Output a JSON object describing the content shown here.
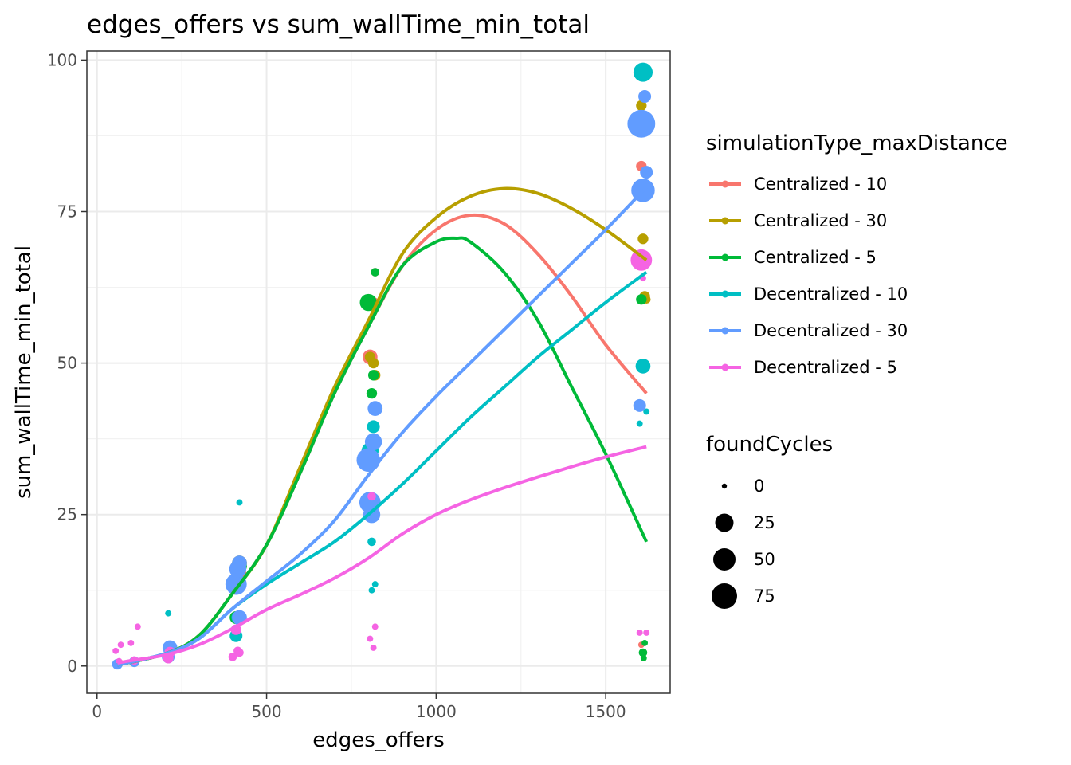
{
  "chart_data": {
    "type": "scatter",
    "title": "edges_offers  vs  sum_wallTime_min_total",
    "xlabel": "edges_offers",
    "ylabel": "sum_wallTime_min_total",
    "xlim": [
      -30,
      1690
    ],
    "ylim": [
      -4.5,
      101.5
    ],
    "x_ticks": [
      0,
      500,
      1000,
      1500
    ],
    "x_tick_labels": [
      "0",
      "500",
      "1000",
      "1500"
    ],
    "y_ticks": [
      0,
      25,
      50,
      75,
      100
    ],
    "y_tick_labels": [
      "0",
      "25",
      "50",
      "75",
      "100"
    ],
    "grid": true,
    "legend_placement": "right",
    "color_legend": {
      "title": "simulationType_maxDistance",
      "entries": [
        {
          "name": "Centralized - 10",
          "color": "#F8766D"
        },
        {
          "name": "Centralized - 30",
          "color": "#B79F00"
        },
        {
          "name": "Centralized - 5",
          "color": "#00BA38"
        },
        {
          "name": "Decentralized - 10",
          "color": "#00BFC4"
        },
        {
          "name": "Decentralized - 30",
          "color": "#619CFF"
        },
        {
          "name": "Decentralized - 5",
          "color": "#F564E3"
        }
      ]
    },
    "size_legend": {
      "title": "foundCycles",
      "entries": [
        {
          "label": "0",
          "value": 0
        },
        {
          "label": "25",
          "value": 25
        },
        {
          "label": "50",
          "value": 50
        },
        {
          "label": "75",
          "value": 75
        }
      ]
    },
    "series": [
      {
        "name": "Centralized - 10",
        "color": "#F8766D",
        "points": [
          [
            60,
            0.3,
            1
          ],
          [
            70,
            0.5,
            1
          ],
          [
            110,
            0.6,
            1
          ],
          [
            215,
            2.0,
            2
          ],
          [
            410,
            13,
            4
          ],
          [
            420,
            15,
            5
          ],
          [
            805,
            51,
            5
          ],
          [
            815,
            60,
            3
          ],
          [
            820,
            65,
            2
          ],
          [
            1605,
            82.5,
            3
          ],
          [
            1610,
            67,
            6
          ],
          [
            1605,
            3.5,
            1
          ]
        ],
        "smooth": [
          [
            60,
            0.2
          ],
          [
            200,
            2
          ],
          [
            300,
            5
          ],
          [
            400,
            12
          ],
          [
            500,
            20
          ],
          [
            600,
            32
          ],
          [
            700,
            45
          ],
          [
            800,
            56
          ],
          [
            900,
            66
          ],
          [
            1000,
            72
          ],
          [
            1100,
            74.4
          ],
          [
            1200,
            73
          ],
          [
            1300,
            68
          ],
          [
            1400,
            61
          ],
          [
            1500,
            53
          ],
          [
            1620,
            45
          ]
        ]
      },
      {
        "name": "Centralized - 30",
        "color": "#B79F00",
        "points": [
          [
            60,
            0.4,
            1
          ],
          [
            110,
            0.8,
            1
          ],
          [
            215,
            3.0,
            3
          ],
          [
            420,
            17,
            5
          ],
          [
            415,
            13,
            4
          ],
          [
            805,
            51,
            3
          ],
          [
            815,
            50,
            3
          ],
          [
            820,
            48,
            3
          ],
          [
            1605,
            92.5,
            3
          ],
          [
            1610,
            70.5,
            3
          ],
          [
            1615,
            61,
            3
          ],
          [
            1620,
            60.5,
            2
          ]
        ],
        "smooth": [
          [
            60,
            0.2
          ],
          [
            200,
            2
          ],
          [
            300,
            5
          ],
          [
            400,
            12
          ],
          [
            500,
            20
          ],
          [
            600,
            33
          ],
          [
            700,
            46
          ],
          [
            800,
            57
          ],
          [
            900,
            68
          ],
          [
            1000,
            74
          ],
          [
            1100,
            77.5
          ],
          [
            1200,
            78.8
          ],
          [
            1300,
            78
          ],
          [
            1400,
            75.5
          ],
          [
            1500,
            72
          ],
          [
            1620,
            67
          ]
        ]
      },
      {
        "name": "Centralized - 5",
        "color": "#00BA38",
        "points": [
          [
            60,
            0.3,
            1
          ],
          [
            110,
            0.6,
            1
          ],
          [
            215,
            2.5,
            2
          ],
          [
            410,
            8,
            4
          ],
          [
            420,
            16.5,
            5
          ],
          [
            800,
            60,
            6
          ],
          [
            805,
            59.5,
            3
          ],
          [
            810,
            45,
            3
          ],
          [
            815,
            48,
            3
          ],
          [
            820,
            65,
            2
          ],
          [
            1605,
            60.5,
            3
          ],
          [
            1610,
            2.2,
            2
          ],
          [
            1615,
            3.8,
            1
          ],
          [
            1612,
            1.3,
            1
          ]
        ],
        "smooth": [
          [
            60,
            0.2
          ],
          [
            200,
            2
          ],
          [
            300,
            5
          ],
          [
            400,
            12
          ],
          [
            500,
            20
          ],
          [
            600,
            32
          ],
          [
            700,
            45
          ],
          [
            800,
            56
          ],
          [
            900,
            66
          ],
          [
            1000,
            70
          ],
          [
            1060,
            70.6
          ],
          [
            1100,
            70
          ],
          [
            1200,
            65
          ],
          [
            1300,
            57
          ],
          [
            1400,
            46
          ],
          [
            1500,
            35
          ],
          [
            1620,
            20.5
          ]
        ]
      },
      {
        "name": "Decentralized - 10",
        "color": "#00BFC4",
        "points": [
          [
            60,
            0.2,
            1
          ],
          [
            210,
            8.7,
            1
          ],
          [
            215,
            2.0,
            2
          ],
          [
            410,
            5.0,
            4
          ],
          [
            415,
            8.0,
            4
          ],
          [
            420,
            27,
            1
          ],
          [
            805,
            35.5,
            6
          ],
          [
            815,
            39.5,
            4
          ],
          [
            810,
            20.5,
            2
          ],
          [
            820,
            13.5,
            1
          ],
          [
            810,
            12.5,
            1
          ],
          [
            1610,
            98,
            7
          ],
          [
            1610,
            49.5,
            5
          ],
          [
            1600,
            40,
            1
          ],
          [
            1620,
            42,
            1
          ]
        ],
        "smooth": [
          [
            60,
            0.2
          ],
          [
            200,
            2
          ],
          [
            300,
            4.5
          ],
          [
            400,
            9.5
          ],
          [
            500,
            13.5
          ],
          [
            600,
            17
          ],
          [
            700,
            20.5
          ],
          [
            800,
            25
          ],
          [
            900,
            30
          ],
          [
            1000,
            35.5
          ],
          [
            1100,
            41
          ],
          [
            1200,
            46
          ],
          [
            1300,
            51
          ],
          [
            1400,
            55.5
          ],
          [
            1500,
            60
          ],
          [
            1620,
            65
          ]
        ]
      },
      {
        "name": "Decentralized - 30",
        "color": "#619CFF",
        "points": [
          [
            60,
            0.3,
            3
          ],
          [
            110,
            0.7,
            3
          ],
          [
            210,
            1.5,
            4
          ],
          [
            215,
            3.0,
            5
          ],
          [
            410,
            13.5,
            8
          ],
          [
            415,
            16,
            6
          ],
          [
            420,
            17,
            5
          ],
          [
            420,
            8,
            5
          ],
          [
            800,
            34,
            9
          ],
          [
            805,
            27,
            8
          ],
          [
            810,
            25,
            6
          ],
          [
            815,
            37,
            6
          ],
          [
            820,
            42.5,
            5
          ],
          [
            1605,
            89.5,
            11
          ],
          [
            1610,
            78.5,
            9
          ],
          [
            1615,
            94,
            4
          ],
          [
            1600,
            43,
            4
          ],
          [
            1620,
            81.5,
            4
          ]
        ],
        "smooth": [
          [
            60,
            0.2
          ],
          [
            200,
            2
          ],
          [
            300,
            4.5
          ],
          [
            400,
            9.5
          ],
          [
            500,
            14
          ],
          [
            600,
            18.5
          ],
          [
            700,
            24
          ],
          [
            800,
            31.5
          ],
          [
            900,
            38.5
          ],
          [
            1000,
            44.5
          ],
          [
            1100,
            50
          ],
          [
            1200,
            55.5
          ],
          [
            1300,
            61
          ],
          [
            1400,
            66.5
          ],
          [
            1500,
            72
          ],
          [
            1620,
            79
          ]
        ]
      },
      {
        "name": "Decentralized - 5",
        "color": "#F564E3",
        "points": [
          [
            55,
            2.5,
            1
          ],
          [
            70,
            3.5,
            1
          ],
          [
            100,
            3.8,
            1
          ],
          [
            120,
            6.5,
            1
          ],
          [
            65,
            0.8,
            1
          ],
          [
            110,
            0.9,
            2
          ],
          [
            210,
            1.3,
            3
          ],
          [
            215,
            2.3,
            3
          ],
          [
            400,
            1.5,
            2
          ],
          [
            410,
            6.0,
            3
          ],
          [
            415,
            2.5,
            2
          ],
          [
            420,
            2.2,
            2
          ],
          [
            805,
            4.5,
            1
          ],
          [
            815,
            3.0,
            1
          ],
          [
            820,
            6.5,
            1
          ],
          [
            810,
            28,
            2
          ],
          [
            1605,
            67,
            8
          ],
          [
            1610,
            64,
            1
          ],
          [
            1600,
            5.5,
            1
          ],
          [
            1620,
            5.5,
            1
          ]
        ],
        "smooth": [
          [
            60,
            0.5
          ],
          [
            100,
            0.9
          ],
          [
            200,
            1.8
          ],
          [
            300,
            3.5
          ],
          [
            400,
            6.2
          ],
          [
            500,
            9.3
          ],
          [
            600,
            11.8
          ],
          [
            700,
            14.5
          ],
          [
            800,
            17.8
          ],
          [
            900,
            21.8
          ],
          [
            1000,
            25
          ],
          [
            1100,
            27.4
          ],
          [
            1200,
            29.4
          ],
          [
            1300,
            31.2
          ],
          [
            1400,
            32.9
          ],
          [
            1500,
            34.5
          ],
          [
            1620,
            36.2
          ]
        ]
      }
    ]
  }
}
